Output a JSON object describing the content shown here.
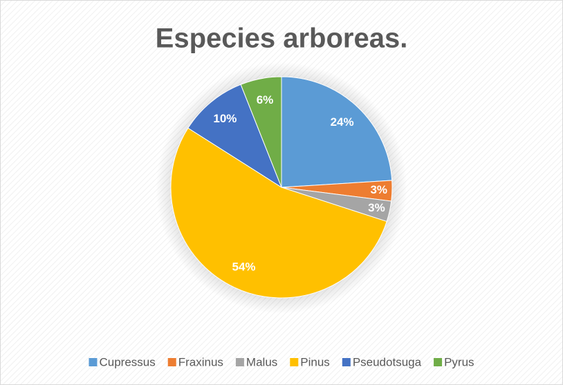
{
  "chart_data": {
    "type": "pie",
    "title": "Especies arboreas.",
    "categories": [
      "Cupressus",
      "Fraxinus",
      "Malus",
      "Pinus",
      "Pseudotsuga",
      "Pyrus"
    ],
    "values": [
      24,
      3,
      3,
      54,
      10,
      6
    ],
    "value_labels": [
      "24%",
      "3%",
      "3%",
      "54%",
      "10%",
      "6%"
    ],
    "colors": [
      "#5b9bd5",
      "#ed7d31",
      "#a5a5a5",
      "#ffc000",
      "#4472c4",
      "#70ad47"
    ],
    "legend": "bottom"
  }
}
